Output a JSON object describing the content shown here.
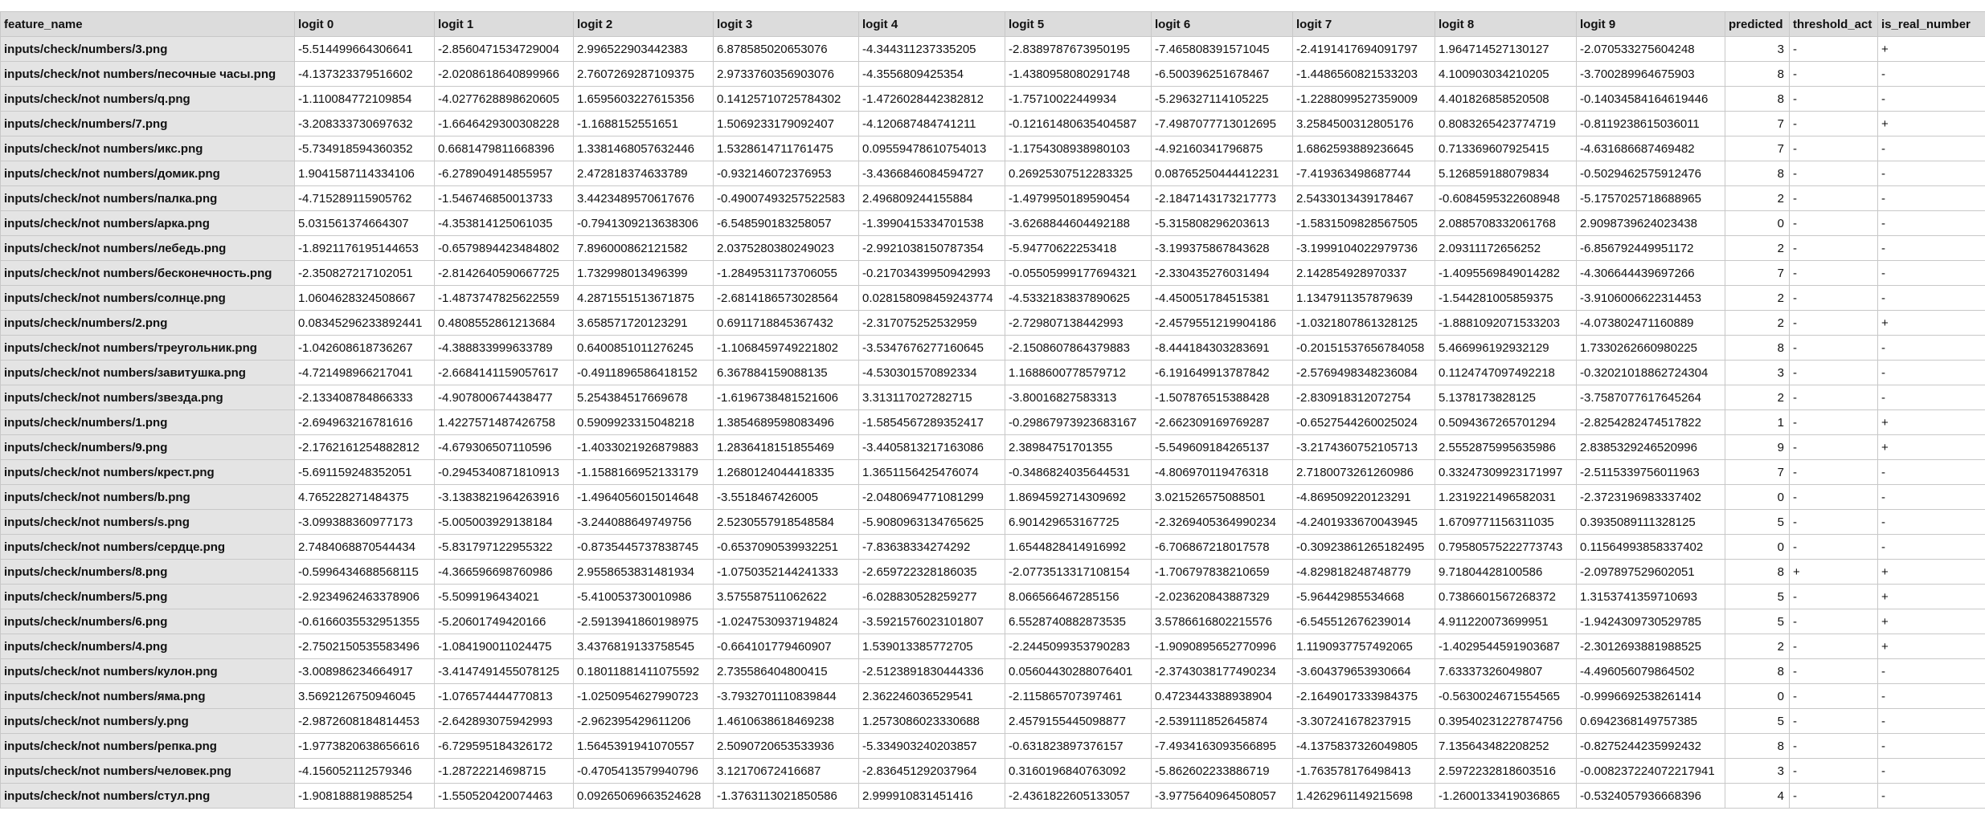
{
  "columns": [
    "feature_name",
    "logit 0",
    "logit 1",
    "logit 2",
    "logit 3",
    "logit 4",
    "logit 5",
    "logit 6",
    "logit 7",
    "logit 8",
    "logit 9",
    "predicted",
    "threshold_act",
    "is_real_number"
  ],
  "rows": [
    [
      "inputs/check/numbers/3.png",
      "-5.514499664306641",
      "-2.8560471534729004",
      "2.996522903442383",
      "6.878585020653076",
      "-4.344311237335205",
      "-2.8389787673950195",
      "-7.465808391571045",
      "-2.4191417694091797",
      "1.964714527130127",
      "-2.070533275604248",
      "3",
      "-",
      "+"
    ],
    [
      "inputs/check/not numbers/песочные часы.png",
      "-4.137323379516602",
      "-2.0208618640899966",
      "2.7607269287109375",
      "2.9733760356903076",
      "-4.3556809425354",
      "-1.4380958080291748",
      "-6.500396251678467",
      "-1.4486560821533203",
      "4.100903034210205",
      "-3.700289964675903",
      "8",
      "-",
      "-"
    ],
    [
      "inputs/check/not numbers/q.png",
      "-1.110084772109854",
      "-4.0277628898620605",
      "1.6595603227615356",
      "0.14125710725784302",
      "-1.4726028442382812",
      "-1.75710022449934",
      "-5.296327114105225",
      "-1.2288099527359009",
      "4.401826858520508",
      "-0.14034584164619446",
      "8",
      "-",
      "-"
    ],
    [
      "inputs/check/numbers/7.png",
      "-3.208333730697632",
      "-1.6646429300308228",
      "-1.1688152551651",
      "1.5069233179092407",
      "-4.120687484741211",
      "-0.12161480635404587",
      "-7.4987077713012695",
      "3.2584500312805176",
      "0.8083265423774719",
      "-0.8119238615036011",
      "7",
      "-",
      "+"
    ],
    [
      "inputs/check/not numbers/икс.png",
      "-5.734918594360352",
      "0.6681479811668396",
      "1.3381468057632446",
      "1.5328614711761475",
      "0.09559478610754013",
      "-1.1754308938980103",
      "-4.92160341796875",
      "1.6862593889236645",
      "0.713369607925415",
      "-4.631686687469482",
      "7",
      "-",
      "-"
    ],
    [
      "inputs/check/not numbers/домик.png",
      "1.9041587114334106",
      "-6.278904914855957",
      "2.472818374633789",
      "-0.932146072376953",
      "-3.4366846084594727",
      "0.26925307512283325",
      "0.08765250444412231",
      "-7.419363498687744",
      "5.126859188079834",
      "-0.5029462575912476",
      "8",
      "-",
      "-"
    ],
    [
      "inputs/check/not numbers/палка.png",
      "-4.715289115905762",
      "-1.546746850013733",
      "3.4423489570617676",
      "-0.49007493257522583",
      "2.496809244155884",
      "-1.4979950189590454",
      "-2.1847143173217773",
      "2.5433013439178467",
      "-0.6084595322608948",
      "-5.1757025718688965",
      "2",
      "-",
      "-"
    ],
    [
      "inputs/check/not numbers/арка.png",
      "5.031561374664307",
      "-4.35381412506103​5",
      "-0.7941309213638306",
      "-6.548590183258057",
      "-1.3990415334701538",
      "-3.6268844604492188",
      "-5.315808296203613",
      "-1.583150982856750​5",
      "2.0885708332061768",
      "2.9098739624023438",
      "0",
      "-",
      "-"
    ],
    [
      "inputs/check/not numbers/лебедь.png",
      "-1.8921176195144653",
      "-0.6579894423484802",
      "7.896000862121582",
      "2.0375280380249023",
      "-2.992103815078735​4",
      "-5.9477062225341​8",
      "-3.1993758678436​28",
      "-3.199910402297973​6",
      "2.0931117265625​2",
      "-6.856792449951172",
      "2",
      "-",
      "-"
    ],
    [
      "inputs/check/not numbers/бесконечность.png",
      "-2.350827217102051",
      "-2.8142640590667725",
      "1.732998013496399",
      "-1.2849531173706055",
      "-0.21703439950942993",
      "-0.05505999177694321",
      "-2.330435276031494",
      "2.142854928970337",
      "-1.4095569849014282",
      "-4.306644439697266",
      "7",
      "-",
      "-"
    ],
    [
      "inputs/check/not numbers/солнце.png",
      "1.0604628324508667",
      "-1.4873747825622559",
      "4.2871551513671875",
      "-2.6814186573028564",
      "0.028158098459243774",
      "-4.5332183837890625",
      "-4.450051784515381",
      "1.134791135787963​9",
      "-1.544281005859375",
      "-3.9106006622314453",
      "2",
      "-",
      "-"
    ],
    [
      "inputs/check/numbers/2.png",
      "0.08345296233892441",
      "0.4808552861213684",
      "3.658571720123291",
      "0.6911718845367432",
      "-2.3170752525329​59",
      "-2.7298071384429​93",
      "-2.457955121990418​6",
      "-1.032180786132812​5",
      "-1.8881092071533203",
      "-4.073802471160889",
      "2",
      "-",
      "+"
    ],
    [
      "inputs/check/not numbers/треугольник.png",
      "-1.042608618736267",
      "-4.388833999633789",
      "0.6400851011276245",
      "-1.1068459749221802",
      "-3.534767627716064​5",
      "-2.1508607864379883",
      "-8.444184303283691",
      "-0.20151537656784058",
      "5.466996192932129",
      "1.7330262660980225",
      "8",
      "-",
      "-"
    ],
    [
      "inputs/check/not numbers/завитушка.png",
      "-4.721498966217041",
      "-2.6684141159057617",
      "-0.4911896586418152",
      "6.367884159088135",
      "-4.530301570892334",
      "1.1688600778579712",
      "-6.19164991378784​2",
      "-2.5769498348236084",
      "0.1124747097492218",
      "-0.32021018862724304",
      "3",
      "-",
      "-"
    ],
    [
      "inputs/check/not numbers/звезда.png",
      "-2.133408784866333",
      "-4.907800674438477",
      "5.254384517669678",
      "-1.6196738481521606",
      "3.313117027282715",
      "-3.80016827583313",
      "-1.5078765153884​28",
      "-2.830918312072754",
      "5.1378173828125",
      "-3.7587077617645264",
      "2",
      "-",
      "-"
    ],
    [
      "inputs/check/numbers/1.png",
      "-2.694963216781616",
      "1.4227571487426758",
      "0.5909923315048218",
      "1.3854689598083496",
      "-1.5854567289352417",
      "-0.2986797392368​3167",
      "-2.662309169769287",
      "-0.6527544260025024",
      "0.5094367265701294",
      "-2.8254282474517822",
      "1",
      "-",
      "+"
    ],
    [
      "inputs/check/numbers/9.png",
      "-2.1762161254882812",
      "-4.679306507110596",
      "-1.4033021926879883",
      "1.2836418151855469",
      "-3.4405813217163086",
      "2.38984751701355",
      "-5.549609184265137",
      "-3.2174360752105713",
      "2.5552875995635986",
      "2.8385329246520996",
      "9",
      "-",
      "+"
    ],
    [
      "inputs/check/not numbers/крест.png",
      "-5.691159248352051",
      "-0.2945340871810913",
      "-1.1588166952133179",
      "1.2680124044418335",
      "1.3651156425476074",
      "-0.3486824035644531",
      "-4.806970119476318",
      "2.7180073261260986",
      "0.3324730992317199​7",
      "-2.5115339756011963",
      "7",
      "-",
      "-"
    ],
    [
      "inputs/check/not numbers/b.png",
      "4.765228271484375",
      "-3.1383821964263916",
      "-1.4964056015014648",
      "-3.5518467426005",
      "-2.0480694771081299",
      "1.869459271430969​2",
      "3.021526575088501",
      "-4.869509220123291",
      "1.2319221496582031",
      "-2.3723196983337402",
      "0",
      "-",
      "-"
    ],
    [
      "inputs/check/not numbers/s.png",
      "-3.099388360977173",
      "-5.005003929138184",
      "-3.244088649749756",
      "2.5230557918548584",
      "-5.908096313476562​5",
      "6.901429653167725",
      "-2.3269405364990234",
      "-4.240193367004394​5",
      "1.6709771156311035",
      "0.3935089111328125",
      "5",
      "-",
      "-"
    ],
    [
      "inputs/check/not numbers/сердце.png",
      "2.7484068870544434",
      "-5.831797122955322",
      "-0.8735445737838745",
      "-0.6537090539932251",
      "-7.83638334274292",
      "1.6544828414916992",
      "-6.706867218017578",
      "-0.30923861265182495",
      "0.7958057522277374​3",
      "0.11564993858337402",
      "0",
      "-",
      "-"
    ],
    [
      "inputs/check/numbers/8.png",
      "-0.5996434688568115",
      "-4.366596698760986",
      "2.9558653831481934",
      "-1.0750352144241333",
      "-2.6597223281860​35",
      "-2.0773513317108154",
      "-1.7067978382106​59",
      "-4.829818248748779",
      "9.718044281005​86",
      "-2.097897529602051",
      "8",
      "+",
      "+"
    ],
    [
      "inputs/check/numbers/5.png",
      "-2.9234962463378906",
      "-5.5099196434021",
      "-5.410053730010986",
      "3.575587511062622",
      "-6.028830528259277",
      "8.066566467285156",
      "-2.023620843887329",
      "-5.96442985534668",
      "0.7386601567268372",
      "1.3153741359710693",
      "5",
      "-",
      "+"
    ],
    [
      "inputs/check/numbers/6.png",
      "-0.6166035532951355",
      "-5.20601749420166",
      "-2.5913941860198975",
      "-1.0247530937194824",
      "-3.5921576023101807",
      "6.5528740882873535",
      "3.5786616802215576",
      "-6.545512676239014",
      "4.911220073699951",
      "-1.9424309730529785",
      "5",
      "-",
      "+"
    ],
    [
      "inputs/check/numbers/4.png",
      "-2.7502150535583496",
      "-1.084190011024475",
      "3.4376819133758545",
      "-0.664101779460907",
      "1.539013385772705",
      "-2.2445099353790283",
      "-1.9090895652770996",
      "1.1190937757492065",
      "-1.4029544591903687",
      "-2.3012693881988525",
      "2",
      "-",
      "+"
    ],
    [
      "inputs/check/not numbers/кулон.png",
      "-3.008986234664917",
      "-3.4147491455078125",
      "0.18011881411075592",
      "2.735586404800415",
      "-2.5123891830444336",
      "0.05604430288076401",
      "-2.3743038177490234",
      "-3.604379653930664",
      "7.63337326049807",
      "-4.496056079864502",
      "8",
      "-",
      "-"
    ],
    [
      "inputs/check/not numbers/яма.png",
      "3.5692126750946045",
      "-1.076574444770813",
      "-1.0250954627990723",
      "-3.7932701110839844",
      "2.362246036529541",
      "-2.115865707397461",
      "0.472344338893890​4",
      "-2.1649017333984375",
      "-0.5630024671554565",
      "-0.9996692538261414",
      "0",
      "-",
      "-"
    ],
    [
      "inputs/check/not numbers/y.png",
      "-2.9872608184814453",
      "-2.642893075942993",
      "-2.962395429611206",
      "1.4610638618469238",
      "1.2573086023330688",
      "2.4579155445098877",
      "-2.539111852645874",
      "-3.307241678237915",
      "0.3954023122787475​6",
      "0.6942368149757385",
      "5",
      "-",
      "-"
    ],
    [
      "inputs/check/not numbers/репка.png",
      "-1.977382063865661​6",
      "-6.729595184326172",
      "1.5645391941070557",
      "2.5090720653533936",
      "-5.334903240203857",
      "-0.6318238973761​57",
      "-7.4934163093566​895",
      "-4.1375837326049805",
      "7.135643482208252",
      "-0.8275244235992432",
      "8",
      "-",
      "-"
    ],
    [
      "inputs/check/not numbers/человек.png",
      "-4.156052112579346",
      "-1.2872221469871​5",
      "-0.4705413579940796",
      "3.1217067241668​7",
      "-2.836451292037964",
      "0.3160196840763092",
      "-5.8626022338867​19",
      "-1.7635781764984​13",
      "2.5972232818603516",
      "-0.008237224072217941",
      "3",
      "-",
      "-"
    ],
    [
      "inputs/check/not numbers/стул.png",
      "-1.908188819885254",
      "-1.550520420074463",
      "0.09265069663524628",
      "-1.3763113021850586",
      "2.999910831451416",
      "-2.4361822605133057",
      "-3.977564096450805​7",
      "1.4262961149215698",
      "-1.2600133419036865",
      "-0.5324057936668396",
      "4",
      "-",
      "-"
    ]
  ]
}
